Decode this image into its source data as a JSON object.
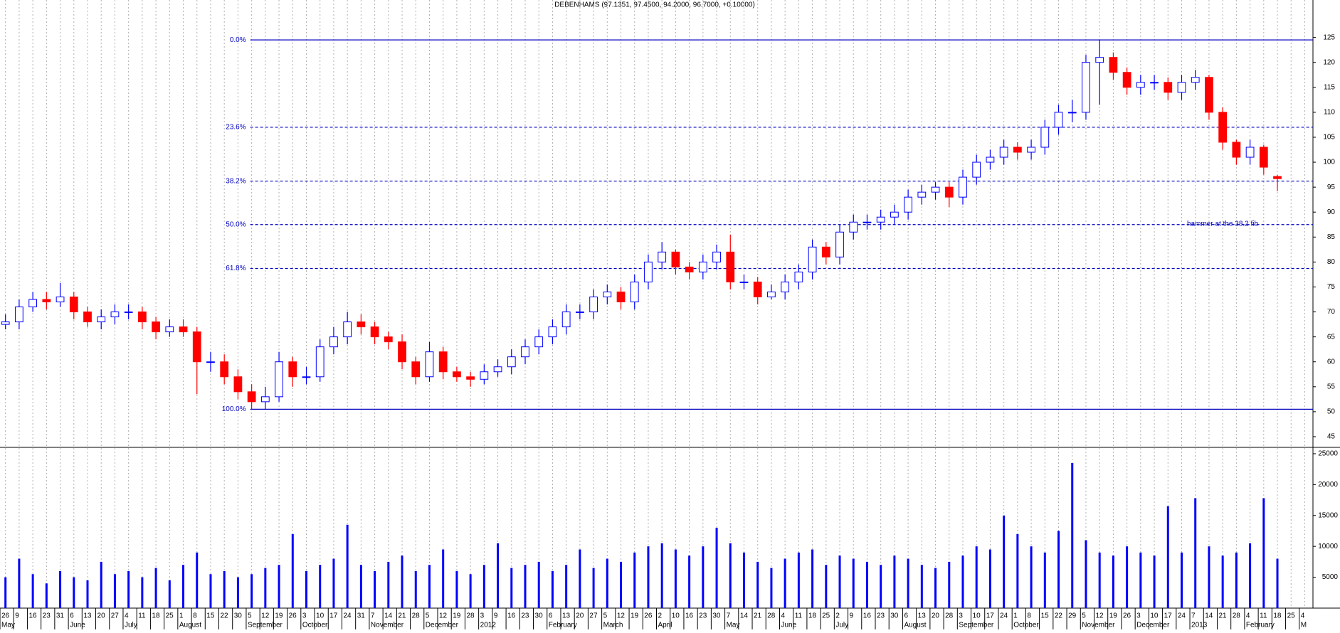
{
  "chart_data": [
    {
      "type": "candlestick",
      "title": "DEBENHAMS (97.1351, 97.4500, 94.2000, 96.7000, +0.10000)",
      "categories": [
        "26",
        "9",
        "16",
        "23",
        "31",
        "6",
        "13",
        "20",
        "27",
        "4",
        "11",
        "18",
        "25",
        "1",
        "8",
        "15",
        "22",
        "30",
        "5",
        "12",
        "19",
        "26",
        "3",
        "10",
        "17",
        "24",
        "31",
        "7",
        "14",
        "21",
        "28",
        "5",
        "12",
        "19",
        "28",
        "3",
        "9",
        "16",
        "23",
        "30",
        "6",
        "13",
        "20",
        "27",
        "5",
        "12",
        "19",
        "26",
        "2",
        "10",
        "16",
        "23",
        "30",
        "7",
        "14",
        "21",
        "28",
        "4",
        "11",
        "18",
        "25",
        "2",
        "9",
        "16",
        "23",
        "30",
        "6",
        "13",
        "20",
        "28",
        "3",
        "10",
        "17",
        "24",
        "1",
        "8",
        "15",
        "22",
        "29",
        "5",
        "12",
        "19",
        "26",
        "3",
        "10",
        "17",
        "24",
        "7",
        "14",
        "21",
        "28",
        "4",
        "11",
        "18",
        "25",
        "4"
      ],
      "months": [
        "May",
        null,
        null,
        null,
        null,
        "June",
        null,
        null,
        null,
        "July",
        null,
        null,
        null,
        "August",
        null,
        null,
        null,
        null,
        "September",
        null,
        null,
        null,
        "October",
        null,
        null,
        null,
        null,
        "November",
        null,
        null,
        null,
        "December",
        null,
        null,
        null,
        "2012",
        null,
        null,
        null,
        null,
        "February",
        null,
        null,
        null,
        "March",
        null,
        null,
        null,
        "April",
        null,
        null,
        null,
        null,
        "May",
        null,
        null,
        null,
        "June",
        null,
        null,
        null,
        "July",
        null,
        null,
        null,
        null,
        "August",
        null,
        null,
        null,
        "September",
        null,
        null,
        null,
        "October",
        null,
        null,
        null,
        null,
        "November",
        null,
        null,
        null,
        "December",
        null,
        null,
        null,
        "2013",
        null,
        null,
        null,
        "February",
        null,
        null,
        null,
        "M"
      ],
      "open": [
        67.5,
        68,
        71,
        72.5,
        72,
        73,
        70,
        68,
        69,
        70,
        70,
        68,
        66,
        67,
        66,
        60,
        60,
        57,
        54,
        52,
        53,
        60,
        57,
        57,
        63,
        65,
        68,
        67,
        65,
        64,
        60,
        57,
        62,
        58,
        57,
        56.5,
        58,
        59,
        61,
        63,
        65,
        67,
        70,
        70,
        73,
        74,
        72,
        76,
        80,
        82,
        79,
        78,
        80,
        82,
        76,
        76,
        73,
        74,
        76,
        78,
        83,
        81,
        86,
        88,
        88,
        89,
        90,
        93,
        94,
        95,
        93,
        97,
        100,
        101,
        103,
        102,
        103,
        107,
        110,
        110,
        120,
        121,
        118,
        115,
        116,
        116,
        114,
        116,
        117,
        110,
        104,
        101,
        103,
        97.1351,
        null,
        null
      ],
      "high": [
        69.5,
        72.5,
        74,
        74,
        75.8,
        74,
        71,
        70.5,
        71.5,
        71.5,
        71,
        69,
        68.5,
        68.5,
        67,
        62,
        61.5,
        58.5,
        55.5,
        55,
        62,
        61,
        59,
        64.5,
        67,
        70,
        69.5,
        68,
        66,
        65.5,
        61,
        64,
        63,
        59,
        58,
        59.5,
        60.5,
        62.5,
        64.5,
        66.5,
        68.5,
        71.5,
        71.5,
        74.5,
        75.5,
        75,
        77.5,
        81.5,
        84,
        82.5,
        80,
        81.5,
        83.5,
        85.5,
        77.5,
        77,
        75.5,
        77.5,
        79.5,
        84.5,
        84,
        87.5,
        89.5,
        89.5,
        90.5,
        91.5,
        94.5,
        95.5,
        96,
        96,
        98.5,
        101.5,
        102.5,
        104.5,
        104,
        104.5,
        108.5,
        111.5,
        112.5,
        121.5,
        124.5,
        122,
        119,
        117.5,
        117.5,
        117,
        117.5,
        118.5,
        117.5,
        111,
        104.5,
        104.5,
        103.5,
        97.45,
        null,
        null
      ],
      "low": [
        66.5,
        66.5,
        70,
        70.5,
        71,
        68.5,
        67,
        66.5,
        67.5,
        68.5,
        66.5,
        64.5,
        65,
        65,
        53.5,
        58,
        55.5,
        52.5,
        50.5,
        50.5,
        52,
        55,
        55.5,
        56,
        61.5,
        63.5,
        65.5,
        63.5,
        62.5,
        58.5,
        55.5,
        56,
        56.5,
        56,
        55,
        55.5,
        57,
        57.5,
        59.5,
        61.5,
        63.5,
        65.5,
        68.5,
        68.5,
        71.5,
        70.5,
        70.5,
        74.5,
        78.5,
        77.5,
        76.5,
        76.5,
        78.5,
        74.5,
        74.5,
        71.5,
        72.5,
        72.5,
        74.5,
        76.5,
        79.5,
        79.5,
        84.5,
        86.5,
        86.5,
        87.5,
        88.5,
        91.5,
        92.5,
        91,
        91.5,
        95.5,
        98.5,
        99.5,
        100.5,
        100.5,
        101.5,
        105.5,
        108,
        108.5,
        111.5,
        116.5,
        113.5,
        113.5,
        114.5,
        112.5,
        112.5,
        114.5,
        108.5,
        102.5,
        99.5,
        99.5,
        97.5,
        94.2,
        null,
        null
      ],
      "close": [
        68,
        71,
        72.5,
        72,
        73,
        70,
        68,
        69,
        70,
        70,
        68,
        66,
        67,
        66,
        60,
        60,
        57,
        54,
        52,
        53,
        60,
        57,
        57,
        63,
        65,
        68,
        67,
        65,
        64,
        60,
        57,
        62,
        58,
        57,
        56.5,
        58,
        59,
        61,
        63,
        65,
        67,
        70,
        70,
        73,
        74,
        72,
        76,
        80,
        82,
        79,
        78,
        80,
        82,
        76,
        76,
        73,
        74,
        76,
        78,
        83,
        81,
        86,
        88,
        88,
        89,
        90,
        93,
        94,
        95,
        93,
        97,
        100,
        101,
        103,
        102,
        103,
        107,
        110,
        110,
        120,
        121,
        118,
        115,
        116,
        116,
        114,
        116,
        117,
        110,
        104,
        101,
        103,
        99,
        96.7,
        null,
        null
      ],
      "up_color": "#0000ff",
      "down_color": "#ff0000",
      "ylim": [
        43,
        132.5
      ],
      "yticks": [
        45,
        50,
        55,
        60,
        65,
        70,
        75,
        80,
        85,
        90,
        95,
        100,
        105,
        110,
        115,
        120,
        125
      ],
      "fib_levels": [
        {
          "value": 124.5,
          "label": "0.0%"
        },
        {
          "value": 107,
          "label": "23.6%"
        },
        {
          "value": 96.2,
          "label": "38.2%"
        },
        {
          "value": 87.5,
          "label": "50.0%"
        },
        {
          "value": 78.7,
          "label": "61.8%"
        },
        {
          "value": 50.5,
          "label": "100.0%"
        }
      ],
      "fib_color": "#0000c0",
      "annotation": "hammer at the 38.2 fib"
    },
    {
      "type": "bar",
      "color": "#0000ff",
      "values": [
        5000,
        8000,
        5500,
        4000,
        6000,
        5000,
        4500,
        7500,
        5500,
        6000,
        5000,
        6500,
        4500,
        7000,
        9000,
        5500,
        6000,
        5000,
        5500,
        6500,
        7000,
        12000,
        6000,
        7000,
        8000,
        13500,
        7000,
        6000,
        7500,
        8500,
        6000,
        7000,
        9500,
        6000,
        5500,
        7000,
        10500,
        6500,
        7000,
        7500,
        6000,
        7000,
        9500,
        6500,
        8000,
        7500,
        9000,
        10000,
        10500,
        9500,
        8500,
        10000,
        13000,
        10500,
        9000,
        7500,
        6500,
        8000,
        9000,
        9500,
        7000,
        8500,
        8000,
        7500,
        7000,
        8500,
        8000,
        7000,
        6500,
        7500,
        8500,
        10000,
        9500,
        15000,
        12000,
        10000,
        9000,
        12500,
        23500,
        11000,
        9000,
        8500,
        10000,
        9000,
        8500,
        16500,
        9000,
        17800,
        10000,
        8500,
        9000,
        10500,
        17800,
        8000,
        null,
        null
      ],
      "ylim": [
        0,
        25800
      ],
      "yticks": [
        5000,
        10000,
        15000,
        20000,
        25000
      ]
    }
  ]
}
